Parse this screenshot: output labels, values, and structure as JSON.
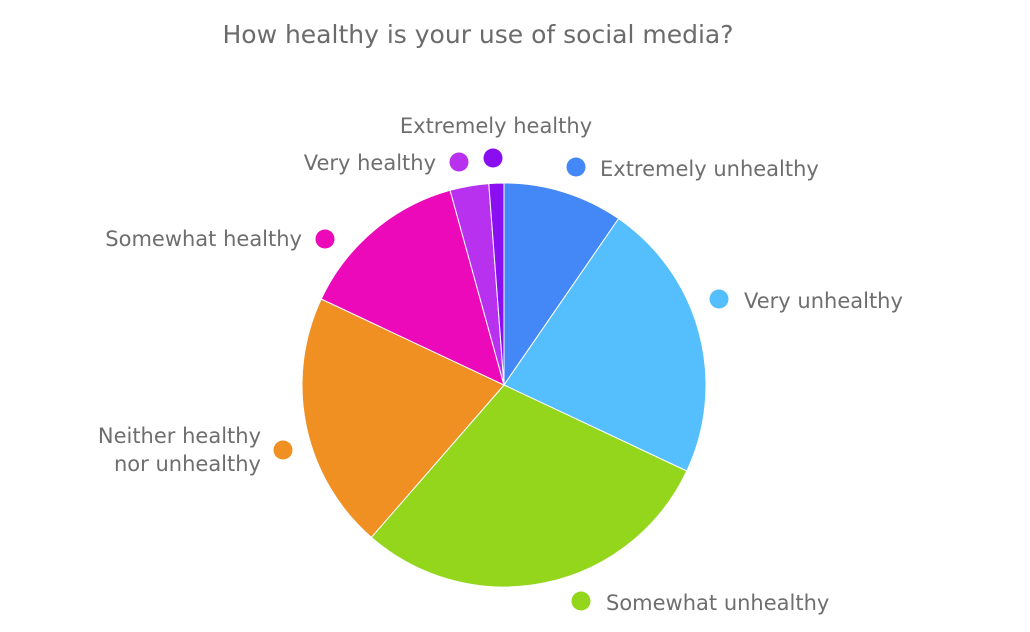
{
  "chart_data": {
    "type": "pie",
    "title": "How healthy is your use of social media?",
    "slices": [
      {
        "label": "Extremely unhealthy",
        "value": 9.6,
        "color": "#4487f7"
      },
      {
        "label": "Very unhealthy",
        "value": 22.4,
        "color": "#55befd"
      },
      {
        "label": "Somewhat unhealthy",
        "value": 29.4,
        "color": "#93d61c"
      },
      {
        "label": "Neither healthy nor unhealthy",
        "value": 20.6,
        "color": "#f09023"
      },
      {
        "label": "Somewhat healthy",
        "value": 13.7,
        "color": "#ec09b9"
      },
      {
        "label": "Very healthy",
        "value": 3.1,
        "color": "#b731ee"
      },
      {
        "label": "Extremely healthy",
        "value": 1.2,
        "color": "#8a0ef0"
      }
    ]
  }
}
